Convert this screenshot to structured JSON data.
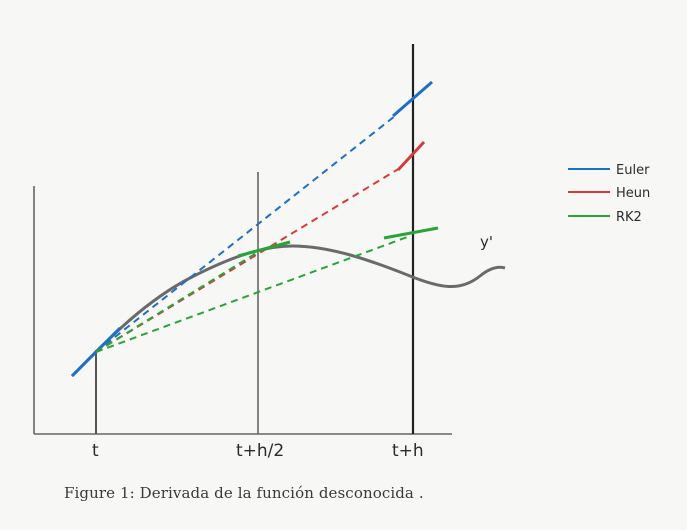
{
  "x_ticks": [
    "t",
    "t+h/2",
    "t+h"
  ],
  "curve_label": "y'",
  "legend": [
    {
      "name": "Euler",
      "color": "#1f6fc6"
    },
    {
      "name": "Heun",
      "color": "#d63b3b"
    },
    {
      "name": "RK2",
      "color": "#2aa33a"
    }
  ],
  "caption": "Figure 1: Derivada de la función desconocida .",
  "colors": {
    "euler": "#1f6fc6",
    "heun": "#d63b3b",
    "rk2": "#2aa33a",
    "ink": "#555555",
    "curve": "#6a6a6a"
  }
}
